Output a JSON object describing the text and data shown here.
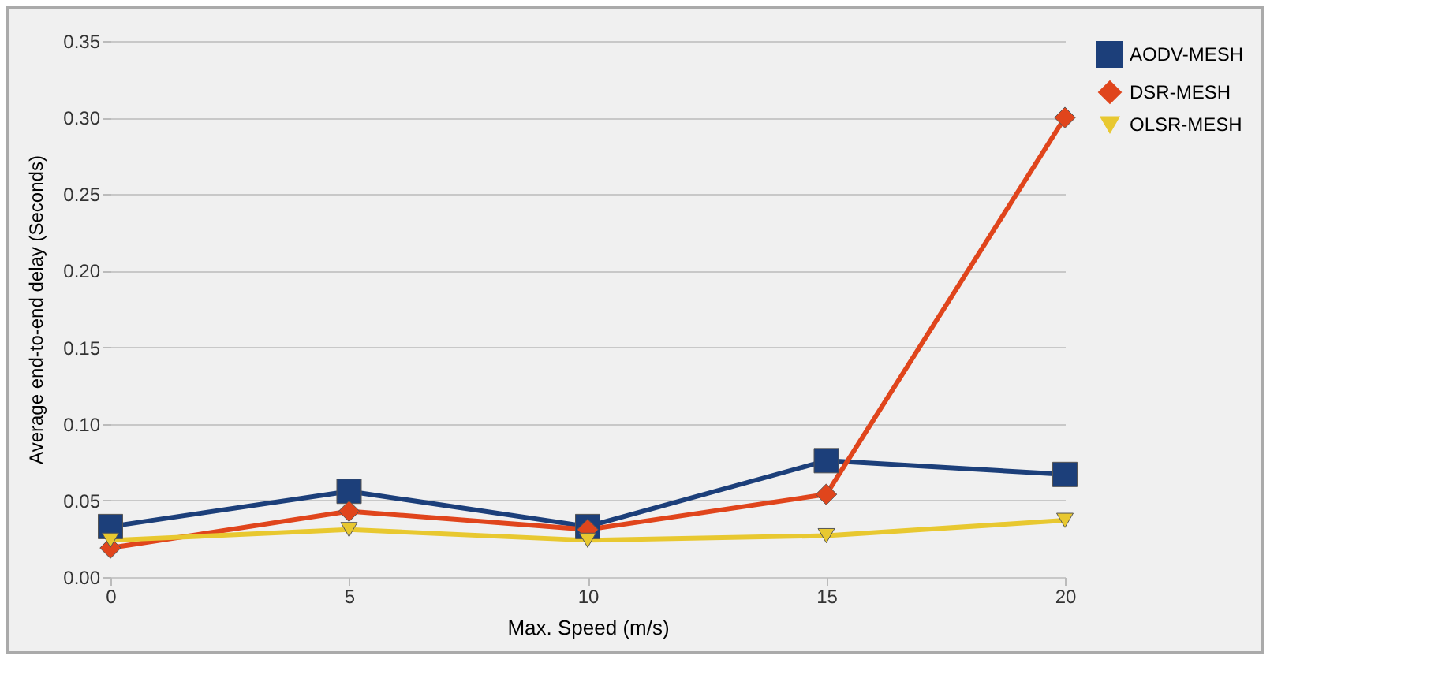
{
  "chart_data": {
    "type": "line",
    "xlabel": "Max. Speed (m/s)",
    "ylabel": "Average end-to-end delay (Seconds)",
    "x": [
      0,
      5,
      10,
      15,
      20
    ],
    "series": [
      {
        "name": "AODV-MESH",
        "color": "#1c3f7a",
        "marker": "square",
        "values": [
          0.033,
          0.056,
          0.033,
          0.076,
          0.067
        ]
      },
      {
        "name": "DSR-MESH",
        "color": "#e0451c",
        "marker": "diamond",
        "values": [
          0.019,
          0.043,
          0.031,
          0.054,
          0.3
        ]
      },
      {
        "name": "OLSR-MESH",
        "color": "#e8c830",
        "marker": "triangle-down",
        "values": [
          0.024,
          0.031,
          0.024,
          0.027,
          0.037
        ]
      }
    ],
    "xlim": [
      0,
      20
    ],
    "xticks": [
      0,
      5,
      10,
      15,
      20
    ],
    "ylim": [
      0,
      0.35
    ],
    "yticks": [
      {
        "value": 0,
        "label": "0.00"
      },
      {
        "value": 0.05,
        "label": "0.05"
      },
      {
        "value": 0.1,
        "label": "0.10"
      },
      {
        "value": 0.15,
        "label": "0.15"
      },
      {
        "value": 0.2,
        "label": "0.20"
      },
      {
        "value": 0.25,
        "label": "0.25"
      },
      {
        "value": 0.3,
        "label": "0.30"
      },
      {
        "value": 0.35,
        "label": "0.35"
      }
    ],
    "grid": "y",
    "legend": "right"
  }
}
